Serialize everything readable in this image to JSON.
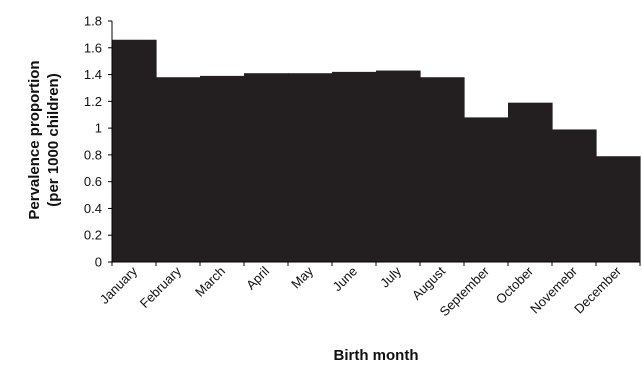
{
  "chart_data": {
    "type": "bar",
    "title": "",
    "xlabel": "Birth month",
    "ylabel_lines": [
      "Pervalence proportion",
      "(per 1000 children)"
    ],
    "categories": [
      "January",
      "February",
      "March",
      "April",
      "May",
      "June",
      "July",
      "August",
      "September",
      "October",
      "Novemebr",
      "December"
    ],
    "values": [
      1.66,
      1.38,
      1.39,
      1.41,
      1.41,
      1.42,
      1.43,
      1.38,
      1.08,
      1.19,
      0.99,
      0.79
    ],
    "ylim": [
      0,
      1.8
    ],
    "yticks": [
      "0",
      "0.2",
      "0.4",
      "0.6",
      "0.8",
      "1",
      "1.2",
      "1.4",
      "1.6",
      "1.8"
    ],
    "grid": false,
    "legend": "none",
    "bar_color": "#231f20",
    "axis_color": "#000000"
  }
}
